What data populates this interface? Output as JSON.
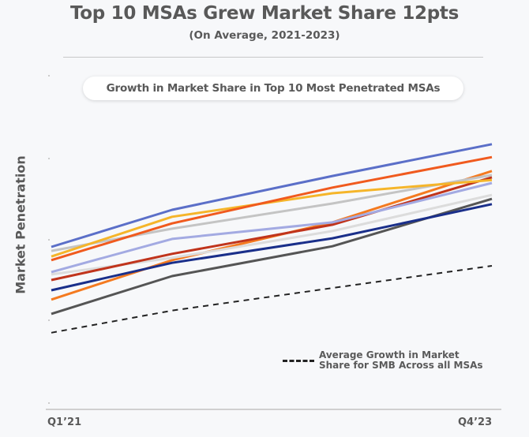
{
  "chart_data": {
    "type": "line",
    "title": "Top 10 MSAs Grew Market Share 12pts",
    "subtitle": "(On Average, 2021-2023)",
    "panel_title": "Growth in Market Share in Top 10 Most Penetrated MSAs",
    "ylabel": "Market Penetration",
    "xlabel": "",
    "x_tick_labels": [
      "Q1’21",
      "Q4’23"
    ],
    "x": [
      0,
      1,
      2,
      3
    ],
    "ylim": [
      0,
      100
    ],
    "grid": false,
    "series": [
      {
        "color": "#5b6fc8",
        "values": [
          46.9,
          58.1,
          68.3,
          77.9
        ]
      },
      {
        "color": "#f05a1e",
        "values": [
          42.9,
          54.0,
          64.8,
          74.0
        ]
      },
      {
        "color": "#f5b52a",
        "values": [
          44.0,
          56.0,
          63.1,
          67.1
        ]
      },
      {
        "color": "#c4c4c4",
        "values": [
          45.7,
          52.4,
          60.0,
          68.6
        ]
      },
      {
        "color": "#a3aae2",
        "values": [
          39.3,
          49.3,
          54.3,
          66.2
        ]
      },
      {
        "color": "#c0341c",
        "values": [
          36.9,
          44.8,
          53.6,
          67.9
        ]
      },
      {
        "color": "#dcdcdc",
        "values": [
          38.6,
          43.6,
          51.7,
          62.6
        ]
      },
      {
        "color": "#1a2f8a",
        "values": [
          33.8,
          42.1,
          49.5,
          59.8
        ]
      },
      {
        "color": "#f47a20",
        "values": [
          31.0,
          42.9,
          54.3,
          69.8
        ]
      },
      {
        "color": "#555555",
        "values": [
          26.7,
          38.1,
          47.1,
          61.4
        ]
      }
    ],
    "average": {
      "name": "Average Growth in Market Share for SMB Across all MSAs",
      "color": "#222222",
      "values": [
        21.0,
        27.7,
        34.5,
        41.2
      ]
    }
  }
}
